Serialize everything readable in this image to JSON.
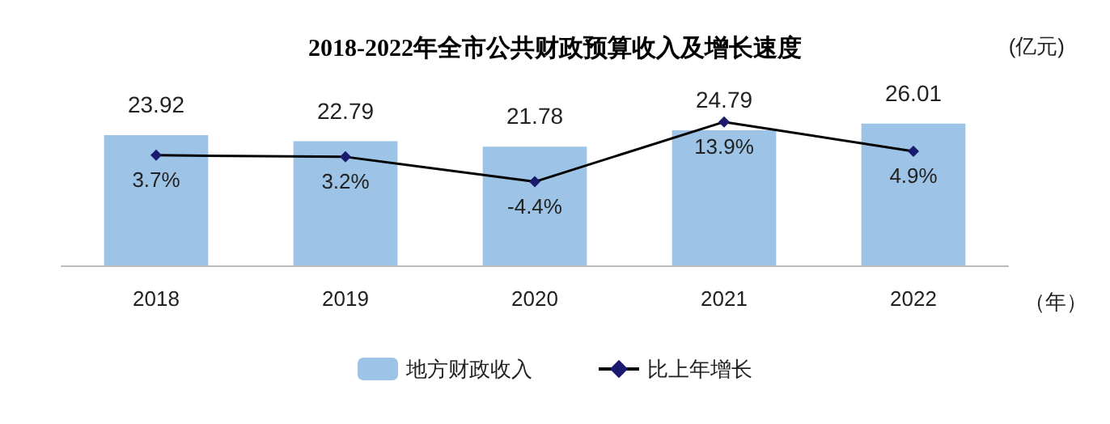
{
  "chart_data": {
    "type": "bar",
    "title": "2018-2022年全市公共财政预算收入及增长速度",
    "annotations": [
      "(亿元)",
      "（年）"
    ],
    "categories": [
      "2018",
      "2019",
      "2020",
      "2021",
      "2022"
    ],
    "series": [
      {
        "name": "地方财政收入",
        "color": "#9dc3e6",
        "values": [
          23.92,
          22.79,
          21.78,
          24.79,
          26.01
        ]
      },
      {
        "name": "比上年增长",
        "type": "line",
        "axis": "y2",
        "color": "#000000",
        "marker": "diamond",
        "values": [
          3.7,
          3.2,
          -4.4,
          13.9,
          4.9
        ],
        "value_labels": [
          "3.7%",
          "3.2%",
          "-4.4%",
          "13.9%",
          "4.9%"
        ]
      }
    ],
    "data_labels": true,
    "tick_labels": "x",
    "legend": "bottom",
    "grid": false
  }
}
